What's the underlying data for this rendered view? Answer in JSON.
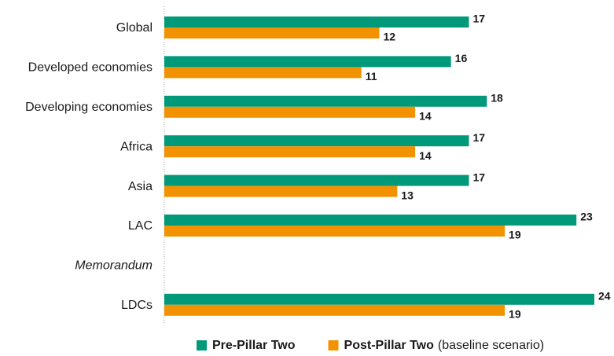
{
  "chart_data": {
    "type": "hbar",
    "categories": [
      "Global",
      "Developed economies",
      "Developing economies",
      "Africa",
      "Asia",
      "LAC",
      "Memorandum",
      "LDCs"
    ],
    "series": [
      {
        "name": "Pre-Pillar Two",
        "color": "#009a7a",
        "values": [
          17,
          16,
          18,
          17,
          17,
          23,
          null,
          24
        ]
      },
      {
        "name": "Post-Pillar Two",
        "color": "#f39200",
        "values": [
          12,
          11,
          14,
          14,
          13,
          19,
          null,
          19
        ]
      }
    ],
    "legend_suffix": "(baseline scenario)",
    "xlim": [
      0,
      24
    ]
  }
}
